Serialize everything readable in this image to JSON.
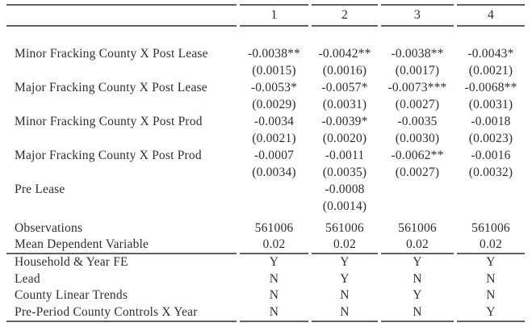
{
  "colors": {
    "background": "#ffffff",
    "text": "#2e2e2e",
    "rule": "#606060"
  },
  "table": {
    "header": {
      "cols": [
        "1",
        "2",
        "3",
        "4"
      ]
    },
    "coef_rows": [
      {
        "label": "Minor Fracking County X Post Lease",
        "coefs": [
          "-0.0038**",
          "-0.0042**",
          "-0.0038**",
          "-0.0043*"
        ],
        "ses": [
          "(0.0015)",
          "(0.0016)",
          "(0.0017)",
          "(0.0021)"
        ]
      },
      {
        "label": "Major Fracking County X Post Lease",
        "coefs": [
          "-0.0053*",
          "-0.0057*",
          "-0.0073***",
          "-0.0068**"
        ],
        "ses": [
          "(0.0029)",
          "(0.0031)",
          "(0.0027)",
          "(0.0031)"
        ]
      },
      {
        "label": "Minor Fracking County X Post Prod",
        "coefs": [
          "-0.0034",
          "-0.0039*",
          "-0.0035",
          "-0.0018"
        ],
        "ses": [
          "(0.0021)",
          "(0.0020)",
          "(0.0030)",
          "(0.0023)"
        ]
      },
      {
        "label": "Major Fracking County X Post Prod",
        "coefs": [
          "-0.0007",
          "-0.0011",
          "-0.0062**",
          "-0.0016"
        ],
        "ses": [
          "(0.0034)",
          "(0.0035)",
          "(0.0027)",
          "(0.0032)"
        ]
      },
      {
        "label": "Pre Lease",
        "coefs": [
          "",
          "-0.0008",
          "",
          ""
        ],
        "ses": [
          "",
          "(0.0014)",
          "",
          ""
        ]
      }
    ],
    "stat_rows": [
      {
        "label": "Observations",
        "values": [
          "561006",
          "561006",
          "561006",
          "561006"
        ]
      },
      {
        "label": "Mean Dependent Variable",
        "values": [
          "0.02",
          "0.02",
          "0.02",
          "0.02"
        ]
      }
    ],
    "fe_rows": [
      {
        "label": "Household & Year FE",
        "values": [
          "Y",
          "Y",
          "Y",
          "Y"
        ]
      },
      {
        "label": "Lead",
        "values": [
          "N",
          "Y",
          "N",
          "N"
        ]
      },
      {
        "label": "County Linear Trends",
        "values": [
          "N",
          "N",
          "Y",
          "N"
        ]
      },
      {
        "label": "Pre-Period County Controls X Year",
        "values": [
          "N",
          "N",
          "N",
          "Y"
        ]
      }
    ]
  }
}
